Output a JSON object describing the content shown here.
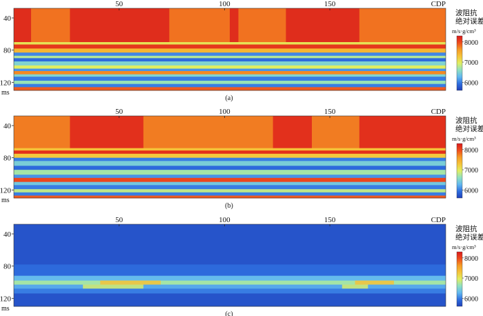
{
  "chart_data": [
    {
      "type": "heatmap",
      "caption": "(a)",
      "x_axis": {
        "label": "CDP",
        "ticks": [
          50,
          100,
          150
        ],
        "range": [
          0,
          205
        ]
      },
      "y_axis": {
        "unit_label": "ms",
        "ticks": [
          40,
          80,
          120
        ],
        "range": [
          28,
          130
        ]
      },
      "colorbar": {
        "title_lines": [
          "波阻抗",
          "绝对误差"
        ],
        "unit": "m/s·g/cm³",
        "ticks": [
          8000,
          7000,
          6000
        ],
        "range": [
          5600,
          8300
        ]
      },
      "colormap": [
        "#1f3fb8",
        "#2f6fe0",
        "#62b8f0",
        "#8fe0c0",
        "#e0ee60",
        "#f5c43a",
        "#f59a25",
        "#ee4c1c",
        "#d9191c"
      ],
      "bands_ms": [
        {
          "t": [
            28,
            70
          ],
          "value": 7800,
          "bright": [
            [
              0,
              0.04
            ],
            [
              0.13,
              0.36
            ],
            [
              0.5,
              0.52
            ],
            [
              0.63,
              0.8
            ]
          ],
          "bright_value": 8250
        },
        {
          "t": [
            70,
            73
          ],
          "value": 7050
        },
        {
          "t": [
            73,
            78
          ],
          "value": 8100
        },
        {
          "t": [
            78,
            83
          ],
          "value": 7400
        },
        {
          "t": [
            83,
            87
          ],
          "value": 6050
        },
        {
          "t": [
            87,
            90
          ],
          "value": 6750
        },
        {
          "t": [
            90,
            94
          ],
          "value": 5900
        },
        {
          "t": [
            94,
            99
          ],
          "value": 6500
        },
        {
          "t": [
            99,
            103
          ],
          "value": 6950
        },
        {
          "t": [
            103,
            106
          ],
          "value": 6100
        },
        {
          "t": [
            106,
            110
          ],
          "value": 7700
        },
        {
          "t": [
            110,
            113
          ],
          "value": 6500
        },
        {
          "t": [
            113,
            118
          ],
          "value": 6000
        },
        {
          "t": [
            118,
            122
          ],
          "value": 6650
        },
        {
          "t": [
            122,
            126
          ],
          "value": 6000
        },
        {
          "t": [
            126,
            130
          ],
          "value": 7900
        }
      ]
    },
    {
      "type": "heatmap",
      "caption": "(b)",
      "x_axis": {
        "label": "CDP",
        "ticks": [
          50,
          100,
          150
        ],
        "range": [
          0,
          205
        ]
      },
      "y_axis": {
        "unit_label": "ms",
        "ticks": [
          40,
          80,
          120
        ],
        "range": [
          28,
          130
        ]
      },
      "colorbar": {
        "title_lines": [
          "波阻抗",
          "绝对误差"
        ],
        "unit": "m/s·g/cm³",
        "ticks": [
          8000,
          7000,
          6000
        ],
        "range": [
          5600,
          8300
        ]
      },
      "colormap": [
        "#1f3fb8",
        "#2f6fe0",
        "#62b8f0",
        "#8fe0c0",
        "#e0ee60",
        "#f5c43a",
        "#f59a25",
        "#ee4c1c",
        "#d9191c"
      ],
      "bands_ms": [
        {
          "t": [
            28,
            68
          ],
          "value": 8150,
          "bright": [
            [
              0.0,
              0.13
            ],
            [
              0.3,
              0.6
            ],
            [
              0.69,
              0.8
            ]
          ],
          "bright_value": 7700
        },
        {
          "t": [
            68,
            71
          ],
          "value": 7300
        },
        {
          "t": [
            71,
            75
          ],
          "value": 8150
        },
        {
          "t": [
            75,
            80
          ],
          "value": 7250
        },
        {
          "t": [
            80,
            84
          ],
          "value": 6000
        },
        {
          "t": [
            84,
            90
          ],
          "value": 6450
        },
        {
          "t": [
            90,
            95
          ],
          "value": 5900
        },
        {
          "t": [
            95,
            101
          ],
          "value": 6700
        },
        {
          "t": [
            101,
            105
          ],
          "value": 6100
        },
        {
          "t": [
            105,
            110
          ],
          "value": 8000
        },
        {
          "t": [
            110,
            114
          ],
          "value": 6400
        },
        {
          "t": [
            114,
            119
          ],
          "value": 6000
        },
        {
          "t": [
            119,
            123
          ],
          "value": 6800
        },
        {
          "t": [
            123,
            127
          ],
          "value": 6000
        },
        {
          "t": [
            127,
            130
          ],
          "value": 7900
        }
      ]
    },
    {
      "type": "heatmap",
      "caption": "(c)",
      "x_axis": {
        "label": "CDP",
        "ticks": [
          50,
          100,
          150
        ],
        "range": [
          0,
          205
        ]
      },
      "y_axis": {
        "unit_label": "ms",
        "ticks": [
          40,
          80,
          120
        ],
        "range": [
          28,
          130
        ]
      },
      "colorbar": {
        "title_lines": [
          "波阻抗",
          "绝对误差"
        ],
        "unit": "m/s·g/cm³",
        "ticks": [
          8000,
          7000,
          6000
        ],
        "range": [
          5600,
          8300
        ]
      },
      "colormap": [
        "#1f3fb8",
        "#2f6fe0",
        "#62b8f0",
        "#8fe0c0",
        "#e0ee60",
        "#f5c43a",
        "#f59a25",
        "#ee4c1c",
        "#d9191c"
      ],
      "bands_ms": [
        {
          "t": [
            28,
            78
          ],
          "value": 5750
        },
        {
          "t": [
            78,
            92
          ],
          "value": 5900
        },
        {
          "t": [
            92,
            98
          ],
          "value": 6300
        },
        {
          "t": [
            98,
            103
          ],
          "value": 6700,
          "bright": [
            [
              0.2,
              0.34
            ],
            [
              0.79,
              0.88
            ]
          ],
          "bright_value": 7300
        },
        {
          "t": [
            103,
            108
          ],
          "value": 6200,
          "bright": [
            [
              0.16,
              0.3
            ],
            [
              0.76,
              0.82
            ]
          ],
          "bright_value": 6900
        },
        {
          "t": [
            108,
            114
          ],
          "value": 6000
        },
        {
          "t": [
            114,
            130
          ],
          "value": 5750
        }
      ]
    }
  ]
}
